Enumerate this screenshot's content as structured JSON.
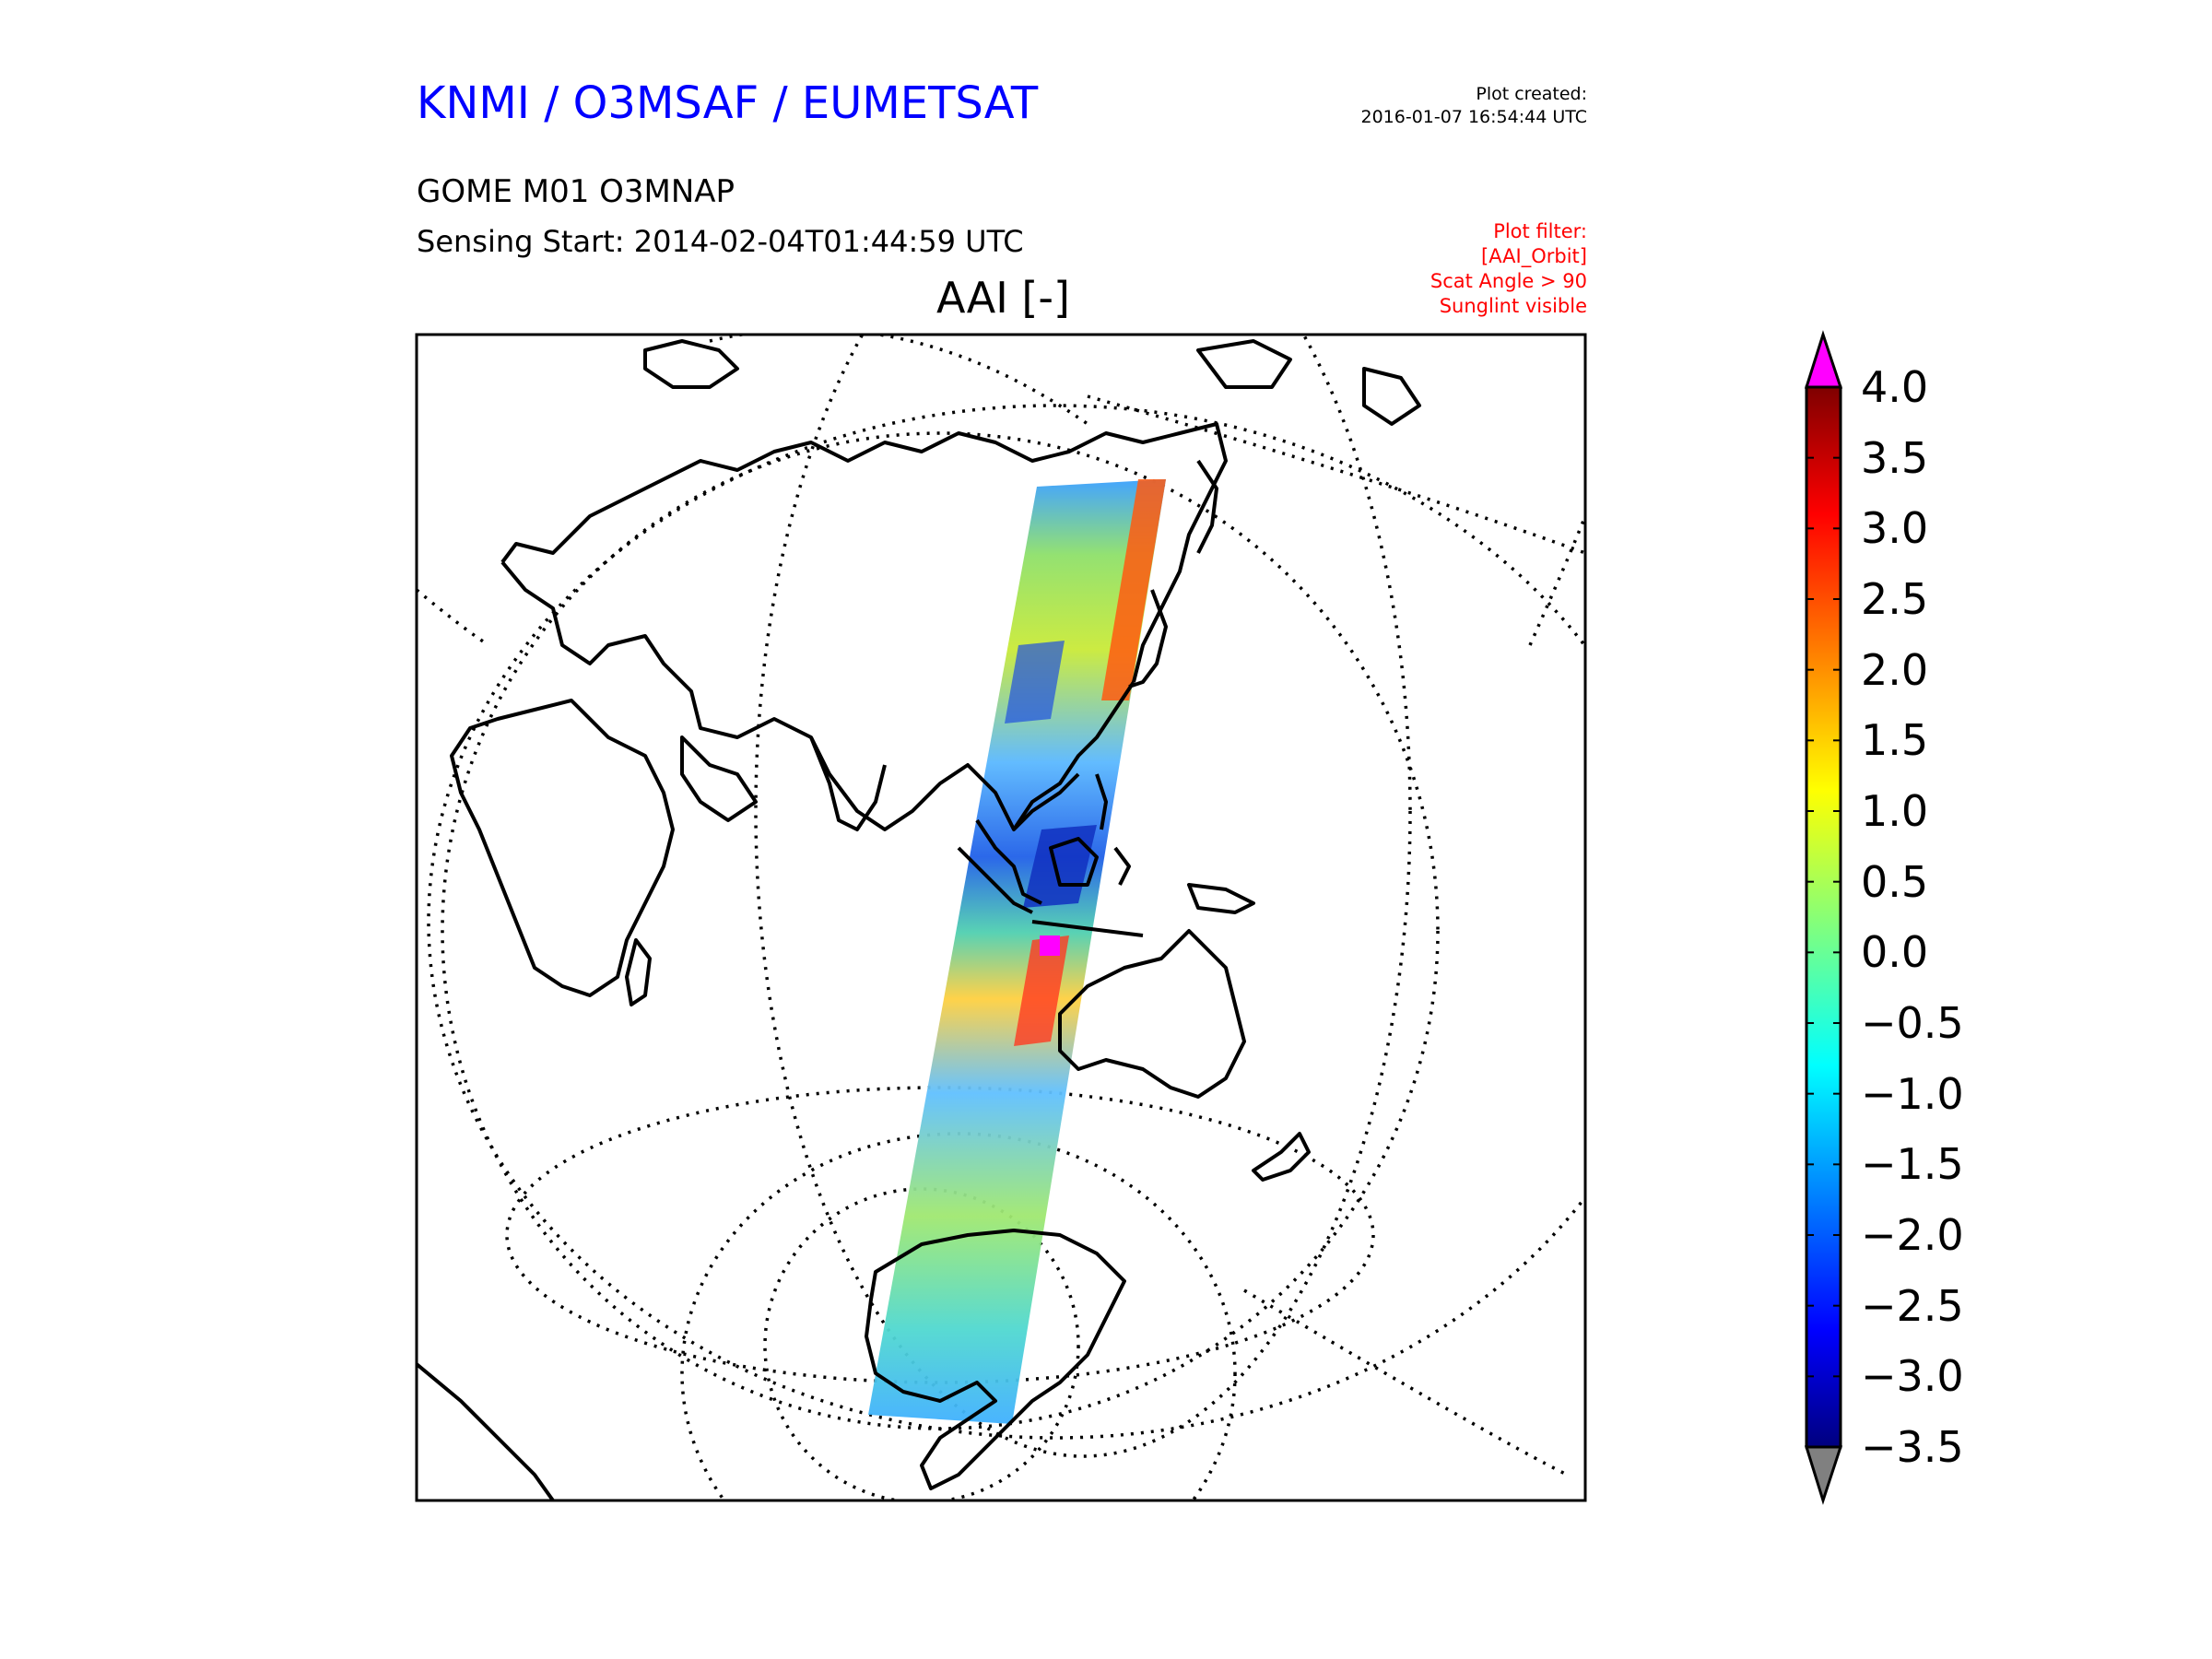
{
  "header": {
    "org_title": "KNMI / O3MSAF / EUMETSAT",
    "plot_created_label": "Plot created:",
    "plot_created_value": "2016-01-07 16:54:44 UTC",
    "product": "GOME M01 O3MNAP",
    "sensing_start": "Sensing Start: 2014-02-04T01:44:59 UTC",
    "filter_lines": [
      "Plot filter:",
      "[AAI_Orbit]",
      "Scat Angle > 90",
      "Sunglint visible"
    ]
  },
  "map": {
    "title": "AAI [-]",
    "projection": "orthographic",
    "swath": "single orbit track over East Asia, Indonesia, Australia and Antarctica"
  },
  "colorbar": {
    "min": -3.5,
    "max": 4.0,
    "ticks": [
      "4.0",
      "3.5",
      "3.0",
      "2.5",
      "2.0",
      "1.5",
      "1.0",
      "0.5",
      "0.0",
      "−0.5",
      "−1.0",
      "−1.5",
      "−2.0",
      "−2.5",
      "−3.0",
      "−3.5"
    ],
    "over_color": "#ff00ff",
    "under_color": "#808080",
    "colormap": [
      "#00007f",
      "#0000ff",
      "#007fff",
      "#00ffff",
      "#7fff7f",
      "#ffff00",
      "#ff7f00",
      "#ff0000",
      "#7f0000"
    ]
  }
}
